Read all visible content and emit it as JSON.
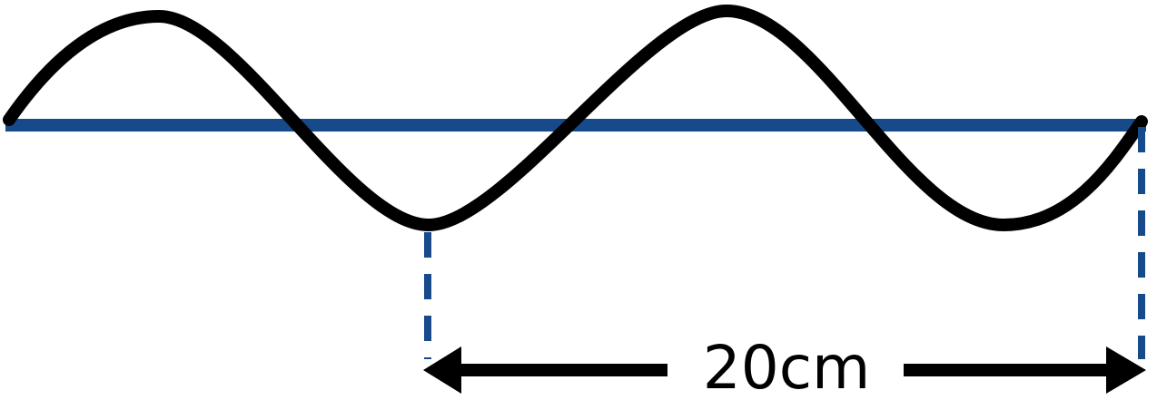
{
  "diagram": {
    "measurement_label": "20cm"
  },
  "colors": {
    "axis": "#174a8b",
    "wave": "#000000",
    "dashed_guides": "#174a8b",
    "arrow": "#000000",
    "background": "#ffffff"
  }
}
